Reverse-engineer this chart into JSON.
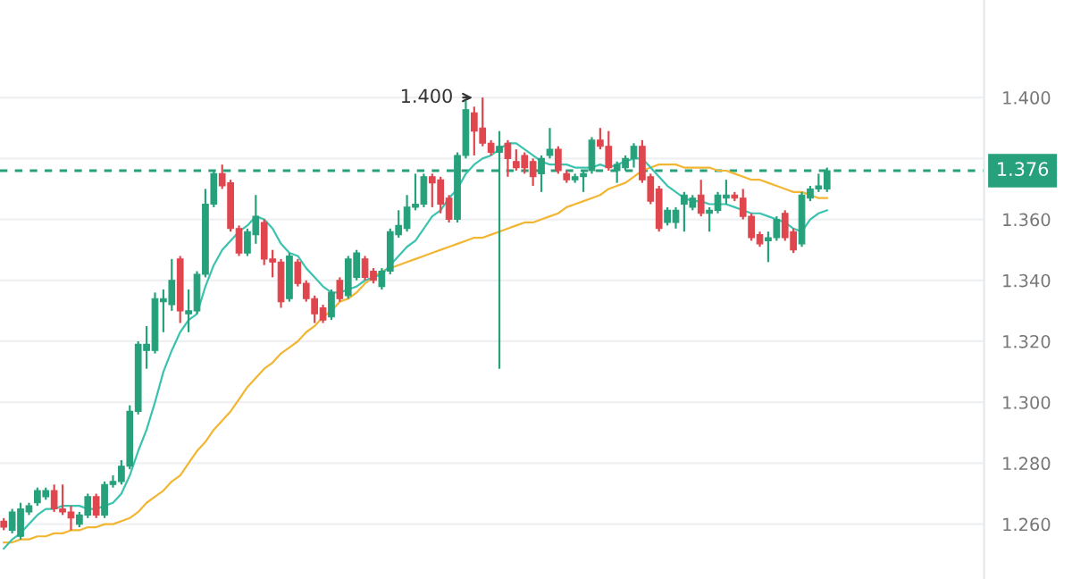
{
  "chart_data": {
    "type": "candlestick",
    "categories": [
      null,
      null,
      null,
      null,
      null,
      null,
      null,
      null,
      null,
      null,
      null,
      null,
      null,
      null,
      null,
      null,
      null,
      null,
      null,
      null,
      null,
      null,
      null,
      null,
      null,
      null,
      null,
      null,
      null,
      null,
      null,
      null,
      null,
      null,
      null,
      null,
      null,
      null,
      null,
      null,
      null,
      null,
      null,
      null,
      null,
      null,
      null,
      null,
      null,
      null,
      null,
      null,
      null,
      null,
      null,
      null,
      null,
      null,
      null,
      null,
      null,
      null,
      null,
      null,
      null,
      null,
      null,
      null,
      null,
      null,
      null,
      null,
      null,
      null,
      null,
      null,
      null,
      null,
      null,
      null,
      null,
      null,
      null,
      null,
      null,
      null,
      null,
      null,
      null,
      null,
      null,
      null,
      null,
      null,
      null,
      null,
      null,
      null,
      null
    ],
    "series": [
      {
        "type": "line",
        "color": "#f2b632",
        "values": [
          1.254,
          1.254,
          1.255,
          1.255,
          1.256,
          1.256,
          1.257,
          1.257,
          1.258,
          1.258,
          1.259,
          1.259,
          1.26,
          1.26,
          1.261,
          1.262,
          1.264,
          1.267,
          1.269,
          1.271,
          1.274,
          1.276,
          1.28,
          1.284,
          1.287,
          1.291,
          1.294,
          1.297,
          1.301,
          1.305,
          1.308,
          1.311,
          1.313,
          1.316,
          1.318,
          1.32,
          1.323,
          1.325,
          1.328,
          1.33,
          1.333,
          1.334,
          1.336,
          1.339,
          1.341,
          1.343,
          1.344,
          1.345,
          1.346,
          1.347,
          1.348,
          1.349,
          1.35,
          1.351,
          1.352,
          1.353,
          1.354,
          1.354,
          1.355,
          1.356,
          1.357,
          1.358,
          1.359,
          1.359,
          1.36,
          1.361,
          1.362,
          1.364,
          1.365,
          1.366,
          1.367,
          1.368,
          1.37,
          1.371,
          1.372,
          1.374,
          1.376,
          1.377,
          1.378,
          1.378,
          1.378,
          1.377,
          1.377,
          1.377,
          1.377,
          1.376,
          1.376,
          1.375,
          1.374,
          1.373,
          1.373,
          1.372,
          1.371,
          1.37,
          1.369,
          1.369,
          1.368,
          1.367,
          1.367
        ]
      },
      {
        "type": "line",
        "color": "#3cc3b0",
        "values": [
          1.252,
          1.255,
          1.257,
          1.26,
          1.263,
          1.265,
          1.265,
          1.266,
          1.266,
          1.266,
          1.265,
          1.265,
          1.266,
          1.267,
          1.27,
          1.276,
          1.284,
          1.291,
          1.3,
          1.31,
          1.317,
          1.323,
          1.327,
          1.329,
          1.338,
          1.345,
          1.35,
          1.353,
          1.356,
          1.358,
          1.361,
          1.36,
          1.357,
          1.352,
          1.349,
          1.348,
          1.344,
          1.341,
          1.338,
          1.336,
          1.336,
          1.337,
          1.338,
          1.34,
          1.341,
          1.342,
          1.345,
          1.348,
          1.351,
          1.353,
          1.357,
          1.361,
          1.363,
          1.367,
          1.37,
          1.375,
          1.378,
          1.38,
          1.381,
          1.383,
          1.385,
          1.385,
          1.383,
          1.381,
          1.379,
          1.378,
          1.378,
          1.378,
          1.377,
          1.377,
          1.377,
          1.378,
          1.377,
          1.378,
          1.379,
          1.38,
          1.38,
          1.377,
          1.374,
          1.371,
          1.369,
          1.367,
          1.366,
          1.366,
          1.365,
          1.365,
          1.365,
          1.364,
          1.363,
          1.362,
          1.362,
          1.361,
          1.36,
          1.359,
          1.357,
          1.356,
          1.36,
          1.362,
          1.363
        ]
      },
      {
        "ohlc": [
          [
            1.261,
            1.262,
            1.258,
            1.259
          ],
          [
            1.258,
            1.265,
            1.257,
            1.264
          ],
          [
            1.256,
            1.267,
            1.255,
            1.265
          ],
          [
            1.264,
            1.267,
            1.263,
            1.266
          ],
          [
            1.267,
            1.272,
            1.266,
            1.271
          ],
          [
            1.269,
            1.272,
            1.268,
            1.271
          ],
          [
            1.271,
            1.273,
            1.264,
            1.265
          ],
          [
            1.265,
            1.273,
            1.263,
            1.264
          ],
          [
            1.264,
            1.266,
            1.258,
            1.262
          ],
          [
            1.26,
            1.264,
            1.259,
            1.263
          ],
          [
            1.263,
            1.27,
            1.262,
            1.269
          ],
          [
            1.269,
            1.27,
            1.262,
            1.263
          ],
          [
            1.263,
            1.274,
            1.262,
            1.273
          ],
          [
            1.273,
            1.276,
            1.272,
            1.274
          ],
          [
            1.274,
            1.281,
            1.273,
            1.279
          ],
          [
            1.279,
            1.299,
            1.278,
            1.297
          ],
          [
            1.297,
            1.32,
            1.296,
            1.319
          ],
          [
            1.317,
            1.325,
            1.311,
            1.319
          ],
          [
            1.317,
            1.336,
            1.316,
            1.334
          ],
          [
            1.333,
            1.337,
            1.323,
            1.334
          ],
          [
            1.332,
            1.347,
            1.33,
            1.34
          ],
          [
            1.347,
            1.348,
            1.326,
            1.33
          ],
          [
            1.329,
            1.337,
            1.323,
            1.33
          ],
          [
            1.33,
            1.343,
            1.329,
            1.342
          ],
          [
            1.342,
            1.37,
            1.341,
            1.365
          ],
          [
            1.365,
            1.376,
            1.364,
            1.375
          ],
          [
            1.375,
            1.378,
            1.37,
            1.371
          ],
          [
            1.372,
            1.373,
            1.356,
            1.357
          ],
          [
            1.357,
            1.358,
            1.348,
            1.349
          ],
          [
            1.349,
            1.357,
            1.348,
            1.356
          ],
          [
            1.355,
            1.368,
            1.352,
            1.361
          ],
          [
            1.359,
            1.36,
            1.345,
            1.347
          ],
          [
            1.347,
            1.35,
            1.341,
            1.346
          ],
          [
            1.346,
            1.347,
            1.331,
            1.333
          ],
          [
            1.334,
            1.349,
            1.333,
            1.348
          ],
          [
            1.346,
            1.347,
            1.338,
            1.339
          ],
          [
            1.339,
            1.34,
            1.333,
            1.334
          ],
          [
            1.334,
            1.335,
            1.326,
            1.329
          ],
          [
            1.331,
            1.332,
            1.326,
            1.327
          ],
          [
            1.328,
            1.337,
            1.327,
            1.336
          ],
          [
            1.34,
            1.341,
            1.333,
            1.334
          ],
          [
            1.335,
            1.348,
            1.334,
            1.347
          ],
          [
            1.341,
            1.35,
            1.34,
            1.349
          ],
          [
            1.347,
            1.348,
            1.34,
            1.341
          ],
          [
            1.343,
            1.344,
            1.339,
            1.34
          ],
          [
            1.338,
            1.344,
            1.337,
            1.343
          ],
          [
            1.343,
            1.357,
            1.342,
            1.356
          ],
          [
            1.355,
            1.363,
            1.354,
            1.358
          ],
          [
            1.357,
            1.368,
            1.356,
            1.364
          ],
          [
            1.364,
            1.375,
            1.363,
            1.365
          ],
          [
            1.365,
            1.375,
            1.364,
            1.374
          ],
          [
            1.374,
            1.375,
            1.364,
            1.372
          ],
          [
            1.373,
            1.374,
            1.362,
            1.365
          ],
          [
            1.367,
            1.368,
            1.359,
            1.36
          ],
          [
            1.36,
            1.382,
            1.359,
            1.381
          ],
          [
            1.381,
            1.399,
            1.38,
            1.396
          ],
          [
            1.395,
            1.397,
            1.381,
            1.389
          ],
          [
            1.39,
            1.4,
            1.384,
            1.385
          ],
          [
            1.385,
            1.386,
            1.381,
            1.382
          ],
          [
            1.382,
            1.389,
            1.311,
            1.384
          ],
          [
            1.385,
            1.386,
            1.374,
            1.38
          ],
          [
            1.379,
            1.383,
            1.376,
            1.377
          ],
          [
            1.381,
            1.382,
            1.375,
            1.377
          ],
          [
            1.379,
            1.38,
            1.371,
            1.374
          ],
          [
            1.375,
            1.381,
            1.369,
            1.38
          ],
          [
            1.381,
            1.39,
            1.38,
            1.383
          ],
          [
            1.383,
            1.384,
            1.375,
            1.376
          ],
          [
            1.375,
            1.376,
            1.372,
            1.373
          ],
          [
            1.373,
            1.375,
            1.372,
            1.374
          ],
          [
            1.374,
            1.376,
            1.369,
            1.375
          ],
          [
            1.376,
            1.387,
            1.375,
            1.386
          ],
          [
            1.386,
            1.39,
            1.383,
            1.384
          ],
          [
            1.384,
            1.389,
            1.376,
            1.377
          ],
          [
            1.376,
            1.379,
            1.372,
            1.378
          ],
          [
            1.377,
            1.381,
            1.376,
            1.38
          ],
          [
            1.38,
            1.385,
            1.377,
            1.384
          ],
          [
            1.384,
            1.386,
            1.372,
            1.373
          ],
          [
            1.374,
            1.375,
            1.365,
            1.366
          ],
          [
            1.37,
            1.371,
            1.356,
            1.357
          ],
          [
            1.359,
            1.364,
            1.358,
            1.363
          ],
          [
            1.359,
            1.364,
            1.357,
            1.363
          ],
          [
            1.365,
            1.369,
            1.356,
            1.368
          ],
          [
            1.364,
            1.368,
            1.363,
            1.367
          ],
          [
            1.368,
            1.373,
            1.361,
            1.362
          ],
          [
            1.362,
            1.364,
            1.356,
            1.363
          ],
          [
            1.363,
            1.369,
            1.362,
            1.368
          ],
          [
            1.367,
            1.373,
            1.365,
            1.368
          ],
          [
            1.368,
            1.369,
            1.366,
            1.367
          ],
          [
            1.367,
            1.37,
            1.36,
            1.361
          ],
          [
            1.361,
            1.362,
            1.353,
            1.354
          ],
          [
            1.355,
            1.356,
            1.351,
            1.352
          ],
          [
            1.353,
            1.356,
            1.346,
            1.354
          ],
          [
            1.354,
            1.361,
            1.353,
            1.36
          ],
          [
            1.362,
            1.363,
            1.353,
            1.354
          ],
          [
            1.356,
            1.357,
            1.349,
            1.35
          ],
          [
            1.352,
            1.369,
            1.351,
            1.368
          ],
          [
            1.367,
            1.371,
            1.366,
            1.37
          ],
          [
            1.37,
            1.375,
            1.369,
            1.371
          ],
          [
            1.37,
            1.377,
            1.369,
            1.376
          ]
        ],
        "colors": [
          "#e0464e",
          "#26a17b",
          "#26a17b",
          "#26a17b",
          "#26a17b",
          "#26a17b",
          "#e0464e",
          "#e0464e",
          "#e0464e",
          "#26a17b",
          "#26a17b",
          "#e0464e",
          "#26a17b",
          "#26a17b",
          "#26a17b",
          "#26a17b",
          "#26a17b",
          "#26a17b",
          "#26a17b",
          "#26a17b",
          "#26a17b",
          "#e0464e",
          "#26a17b",
          "#26a17b",
          "#26a17b",
          "#26a17b",
          "#e0464e",
          "#e0464e",
          "#e0464e",
          "#26a17b",
          "#26a17b",
          "#e0464e",
          "#e0464e",
          "#e0464e",
          "#26a17b",
          "#e0464e",
          "#e0464e",
          "#e0464e",
          "#e0464e",
          "#26a17b",
          "#e0464e",
          "#26a17b",
          "#26a17b",
          "#e0464e",
          "#e0464e",
          "#26a17b",
          "#26a17b",
          "#26a17b",
          "#26a17b",
          "#26a17b",
          "#26a17b",
          "#e0464e",
          "#e0464e",
          "#e0464e",
          "#26a17b",
          "#26a17b",
          "#e0464e",
          "#e0464e",
          "#e0464e",
          "#26a17b",
          "#e0464e",
          "#e0464e",
          "#e0464e",
          "#e0464e",
          "#26a17b",
          "#26a17b",
          "#e0464e",
          "#e0464e",
          "#26a17b",
          "#26a17b",
          "#26a17b",
          "#e0464e",
          "#e0464e",
          "#26a17b",
          "#26a17b",
          "#26a17b",
          "#e0464e",
          "#e0464e",
          "#e0464e",
          "#26a17b",
          "#26a17b",
          "#26a17b",
          "#26a17b",
          "#e0464e",
          "#26a17b",
          "#26a17b",
          "#26a17b",
          "#e0464e",
          "#e0464e",
          "#e0464e",
          "#e0464e",
          "#26a17b",
          "#26a17b",
          "#e0464e",
          "#e0464e",
          "#26a17b",
          "#26a17b",
          "#26a17b",
          "#26a17b"
        ]
      }
    ],
    "ylim": [
      1.242,
      1.432
    ],
    "yticks": [
      {
        "value": 1.26,
        "label": "1.260"
      },
      {
        "value": 1.28,
        "label": "1.280"
      },
      {
        "value": 1.3,
        "label": "1.300"
      },
      {
        "value": 1.32,
        "label": "1.320"
      },
      {
        "value": 1.34,
        "label": "1.340"
      },
      {
        "value": 1.36,
        "label": "1.360"
      },
      {
        "value": 1.38,
        "label": null
      },
      {
        "value": 1.4,
        "label": "1.400"
      }
    ],
    "grid": "y",
    "tick_labels": "y",
    "marker": "none",
    "ref_lines": [
      {
        "axis": "y",
        "value": 1.376,
        "label": "1.376",
        "color": "#26a17b",
        "line_style": "dashed"
      }
    ],
    "annotations": [
      "1.400"
    ]
  }
}
